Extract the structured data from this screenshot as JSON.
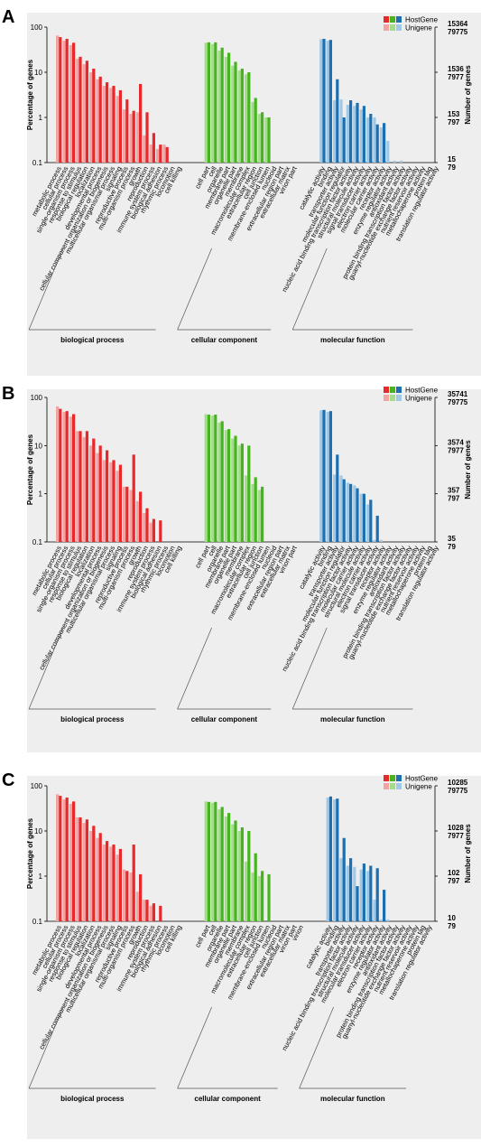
{
  "panels": [
    {
      "label": "A",
      "legend": [
        "HostGene",
        "Unigene"
      ],
      "y_left_ticks": [
        "100",
        "10",
        "1",
        "0.1"
      ],
      "y_right_ticks": [
        [
          "15364",
          "79775"
        ],
        [
          "1536",
          "7977"
        ],
        [
          "153",
          "797"
        ],
        [
          "15",
          "79"
        ]
      ],
      "ylabel_left": "Percentage of genes",
      "ylabel_right": "Number of genes"
    },
    {
      "label": "B",
      "legend": [
        "HostGene",
        "Unigene"
      ],
      "y_left_ticks": [
        "100",
        "10",
        "1",
        "0.1"
      ],
      "y_right_ticks": [
        [
          "35741",
          "79775"
        ],
        [
          "3574",
          "7977"
        ],
        [
          "357",
          "797"
        ],
        [
          "35",
          "79"
        ]
      ],
      "ylabel_left": "Percentage of genes",
      "ylabel_right": "Number of genes"
    },
    {
      "label": "C",
      "legend": [
        "HostGene",
        "Unigene"
      ],
      "y_left_ticks": [
        "100",
        "10",
        "1",
        "0.1"
      ],
      "y_right_ticks": [
        [
          "10285",
          "79775"
        ],
        [
          "1028",
          "7977"
        ],
        [
          "102",
          "797"
        ],
        [
          "10",
          "79"
        ]
      ],
      "ylabel_left": "Percentage of genes",
      "ylabel_right": "Number of genes"
    }
  ],
  "colors": {
    "red": "#e8282b",
    "red_light": "#f4a3a3",
    "green": "#46b41e",
    "green_light": "#a3dc8a",
    "blue": "#1e6fb0",
    "blue_light": "#9fc9e6"
  },
  "chart_data": [
    {
      "type": "bar",
      "panel": "A",
      "ylim": [
        0.1,
        100
      ],
      "log_scale": true,
      "ylabel": "Percentage of genes",
      "y2label": "Number of genes",
      "groups": [
        {
          "name": "biological process",
          "color": "red",
          "categories": [
            "metabolic process",
            "cellular process",
            "single-organism process",
            "response to stimulus",
            "biological regulation",
            "localization",
            "developmental process",
            "cellular component organization or biogenesis",
            "multicellular organismal process",
            "signaling",
            "reproductive process",
            "multi-organism process",
            "growth",
            "reproduction",
            "immune system process",
            "biological adhesion",
            "rhythmic process",
            "locomotion",
            "cell killing"
          ],
          "series": [
            {
              "name": "HostGene",
              "values": [
                60,
                55,
                45,
                22,
                18,
                12,
                8,
                6,
                5,
                4,
                2.5,
                1.4,
                5.5,
                1.3,
                0.45,
                0.25,
                0.22,
                null,
                null
              ]
            },
            {
              "name": "Unigene",
              "values": [
                65,
                50,
                40,
                20,
                15,
                10,
                7,
                5,
                4.5,
                3,
                1.5,
                1.2,
                1.3,
                0.4,
                0.25,
                0.2,
                0.25,
                null,
                null
              ]
            }
          ]
        },
        {
          "name": "cellular component",
          "color": "green",
          "categories": [
            "cell part",
            "cell",
            "organelle",
            "membrane part",
            "organelle part",
            "membrane",
            "macromolecular complex",
            "extracellular region",
            "cell junction",
            "membrane-enclosed lumen",
            "nucleoid",
            "extracellular region part",
            "extracellular matrix",
            "virion part"
          ],
          "series": [
            {
              "name": "HostGene",
              "values": [
                46,
                46,
                35,
                27,
                17,
                12,
                10,
                2.7,
                1.3,
                1.0,
                null,
                null,
                null,
                null
              ]
            },
            {
              "name": "Unigene",
              "values": [
                45,
                42,
                30,
                22,
                14,
                11,
                9,
                2.2,
                1.2,
                1.0,
                null,
                null,
                null,
                null
              ]
            }
          ]
        },
        {
          "name": "molecular function",
          "color": "blue",
          "categories": [
            "catalytic activity",
            "binding",
            "transporter activity",
            "molecular function regulator",
            "nucleic acid binding transcription factor activity",
            "structural molecule activity",
            "signal transducer activity",
            "electron carrier activity",
            "molecular carrier activity",
            "receptor activity",
            "enzyme regulator activity",
            "antioxidant activity",
            "protein binding transcription factor activity",
            "guanyl-nucleotide exchange factor activity",
            "nutrient reservoir activity",
            "metallochaperone activity",
            "protein tag",
            "translation regulator activity"
          ],
          "series": [
            {
              "name": "HostGene",
              "values": [
                55,
                52,
                7,
                1.0,
                2.4,
                2.1,
                1.8,
                1.2,
                0.7,
                0.75,
                null,
                null,
                null,
                null,
                null,
                null,
                null,
                null
              ]
            },
            {
              "name": "Unigene",
              "values": [
                54,
                50,
                2.4,
                2.5,
                1.9,
                1.8,
                1.5,
                1.0,
                1.0,
                0.6,
                0.3,
                0.11,
                0.11,
                null,
                null,
                null,
                null,
                null
              ]
            }
          ]
        }
      ]
    },
    {
      "type": "bar",
      "panel": "B",
      "ylim": [
        0.1,
        100
      ],
      "log_scale": true,
      "ylabel": "Percentage of genes",
      "y2label": "Number of genes",
      "groups": [
        {
          "name": "biological process",
          "color": "red",
          "categories": [
            "metabolic process",
            "cellular process",
            "single-organism process",
            "response to stimulus",
            "biological regulation",
            "localization",
            "developmental process",
            "cellular component organization or biogenesis",
            "multicellular organismal process",
            "signaling",
            "reproductive process",
            "multi-organism process",
            "growth",
            "reproduction",
            "immune system process",
            "biological adhesion",
            "rhythmic process",
            "locomotion",
            "cell killing"
          ],
          "series": [
            {
              "name": "HostGene",
              "values": [
                58,
                52,
                45,
                20,
                20,
                14,
                10,
                8,
                5,
                4,
                1.4,
                6.5,
                1.1,
                0.5,
                0.3,
                0.28,
                null,
                null,
                null
              ]
            },
            {
              "name": "Unigene",
              "values": [
                65,
                50,
                40,
                20,
                15,
                10,
                7,
                5,
                4.5,
                3,
                1.4,
                1.2,
                0.7,
                0.4,
                0.25,
                null,
                null,
                null,
                null
              ]
            }
          ]
        },
        {
          "name": "cellular component",
          "color": "green",
          "categories": [
            "cell part",
            "cell",
            "organelle",
            "membrane part",
            "organelle part",
            "membrane",
            "macromolecular complex",
            "extracellular region",
            "cell junction",
            "membrane-enclosed lumen",
            "nucleoid",
            "extracellular region part",
            "extracellular matrix",
            "virion part"
          ],
          "series": [
            {
              "name": "HostGene",
              "values": [
                44,
                44,
                32,
                22,
                16,
                11,
                10,
                2.2,
                1.4,
                null,
                null,
                null,
                null,
                null
              ]
            },
            {
              "name": "Unigene",
              "values": [
                45,
                42,
                30,
                21,
                14,
                10,
                2.4,
                1.6,
                1.2,
                null,
                null,
                null,
                null,
                null
              ]
            }
          ]
        },
        {
          "name": "molecular function",
          "color": "blue",
          "categories": [
            "catalytic activity",
            "binding",
            "transporter activity",
            "molecular function regulator",
            "nucleic acid binding transcription factor activity",
            "molecular carrier activity",
            "structural molecule activity",
            "electron carrier activity",
            "signal transducer activity",
            "receptor activity",
            "enzyme regulator activity",
            "antioxidant activity",
            "protein binding transcription factor activity",
            "guanyl-nucleotide exchange factor activity",
            "nutrient reservoir activity",
            "metallochaperone activity",
            "protein tag",
            "translation regulator activity"
          ],
          "series": [
            {
              "name": "HostGene",
              "values": [
                55,
                52,
                6.5,
                2.0,
                1.6,
                1.3,
                1.0,
                0.75,
                0.35,
                null,
                null,
                null,
                null,
                null,
                null,
                null,
                null,
                null
              ]
            },
            {
              "name": "Unigene",
              "values": [
                54,
                50,
                2.5,
                2.4,
                1.7,
                1.5,
                1.0,
                0.6,
                0.11,
                0.11,
                null,
                null,
                null,
                null,
                null,
                null,
                null,
                null
              ]
            }
          ]
        }
      ]
    },
    {
      "type": "bar",
      "panel": "C",
      "ylim": [
        0.1,
        100
      ],
      "log_scale": true,
      "ylabel": "Percentage of genes",
      "y2label": "Number of genes",
      "groups": [
        {
          "name": "biological process",
          "color": "red",
          "categories": [
            "metabolic process",
            "cellular process",
            "single-organism process",
            "response to stimulus",
            "biological regulation",
            "localization",
            "developmental process",
            "cellular component organization or biogenesis",
            "multicellular organismal process",
            "signaling",
            "reproductive process",
            "multi-organism process",
            "growth",
            "reproduction",
            "immune system process",
            "biological adhesion",
            "rhythmic process",
            "locomotion",
            "cell killing"
          ],
          "series": [
            {
              "name": "HostGene",
              "values": [
                60,
                55,
                45,
                20,
                18,
                13,
                9,
                6,
                5,
                4,
                1.3,
                5.0,
                1.1,
                0.3,
                0.25,
                0.22,
                null,
                null,
                null
              ]
            },
            {
              "name": "Unigene",
              "values": [
                65,
                50,
                40,
                20,
                15,
                10,
                7,
                5,
                4.5,
                3,
                1.4,
                1.2,
                0.45,
                0.3,
                0.22,
                null,
                null,
                null,
                null
              ]
            }
          ]
        },
        {
          "name": "cellular component",
          "color": "green",
          "categories": [
            "cell part",
            "cell",
            "organelle",
            "membrane part",
            "organelle part",
            "membrane",
            "macromolecular complex",
            "extracellular region",
            "cell junction",
            "membrane-enclosed lumen",
            "nucleoid",
            "extracellular region part",
            "extracellular matrix",
            "virion part",
            "virion"
          ],
          "series": [
            {
              "name": "HostGene",
              "values": [
                44,
                44,
                34,
                25,
                17,
                12,
                10,
                3.2,
                1.3,
                1.1,
                null,
                null,
                null,
                null,
                null
              ]
            },
            {
              "name": "Unigene",
              "values": [
                45,
                42,
                30,
                21,
                14,
                10,
                2.1,
                1.2,
                1.0,
                null,
                null,
                null,
                null,
                null,
                null
              ]
            }
          ]
        },
        {
          "name": "molecular function",
          "color": "blue",
          "categories": [
            "catalytic activity",
            "binding",
            "transporter activity",
            "nucleic acid binding transcription factor activity",
            "structural molecule activity",
            "molecular transducer activity",
            "electron carrier activity",
            "receptor activity",
            "enzyme regulator activity",
            "antioxidant activity",
            "protein binding transcription factor activity",
            "guanyl-nucleotide exchange factor activity",
            "nutrient reservoir activity",
            "metallochaperone activity",
            "protein tag",
            "translation regulator activity"
          ],
          "series": [
            {
              "name": "HostGene",
              "values": [
                58,
                52,
                7,
                2.5,
                0.6,
                1.9,
                1.7,
                1.5,
                0.5,
                null,
                null,
                null,
                null,
                null,
                null,
                null
              ]
            },
            {
              "name": "Unigene",
              "values": [
                55,
                50,
                2.5,
                1.7,
                1.6,
                1.4,
                1.3,
                0.3,
                0.11,
                0.11,
                null,
                null,
                null,
                null,
                null,
                null
              ]
            }
          ]
        }
      ]
    }
  ]
}
